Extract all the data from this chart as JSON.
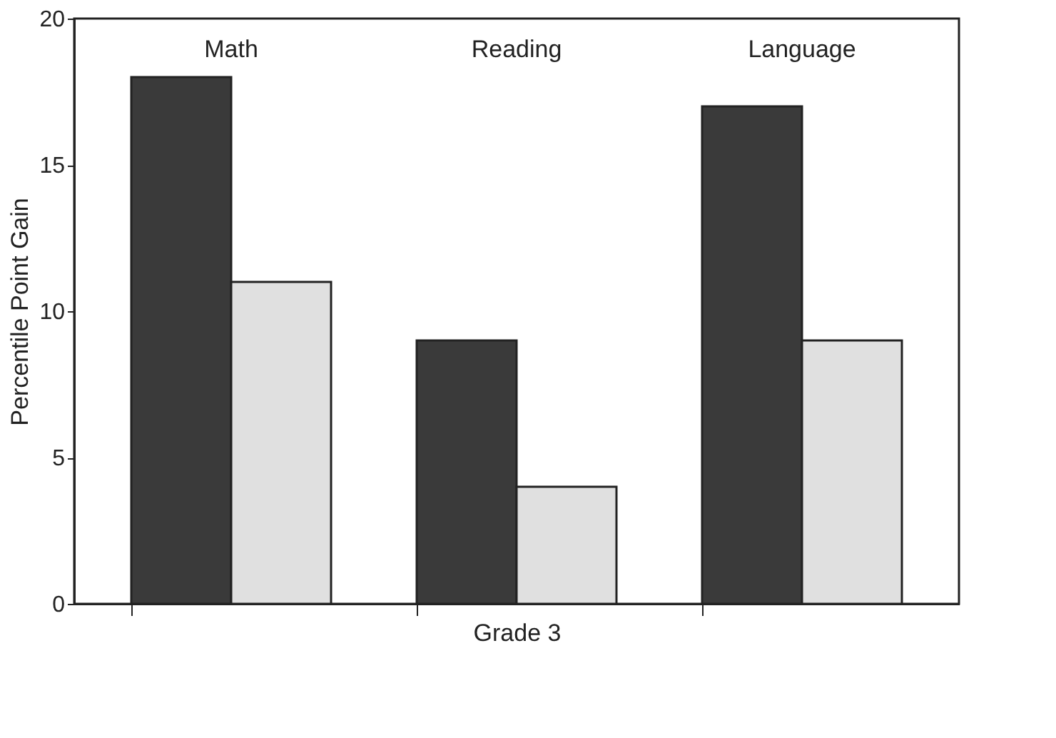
{
  "chart_data": {
    "type": "bar",
    "xlabel": "Grade 3",
    "ylabel": "Percentile Point Gain",
    "categories": [
      "Math",
      "Reading",
      "Language"
    ],
    "series": [
      {
        "color": "#3a3a3a",
        "values": [
          18,
          9,
          17
        ]
      },
      {
        "color": "#e0e0e0",
        "values": [
          11,
          4,
          9
        ]
      }
    ],
    "ylim": [
      0,
      20
    ],
    "yticks": [
      0,
      5,
      10,
      15,
      20
    ],
    "grid": false
  }
}
